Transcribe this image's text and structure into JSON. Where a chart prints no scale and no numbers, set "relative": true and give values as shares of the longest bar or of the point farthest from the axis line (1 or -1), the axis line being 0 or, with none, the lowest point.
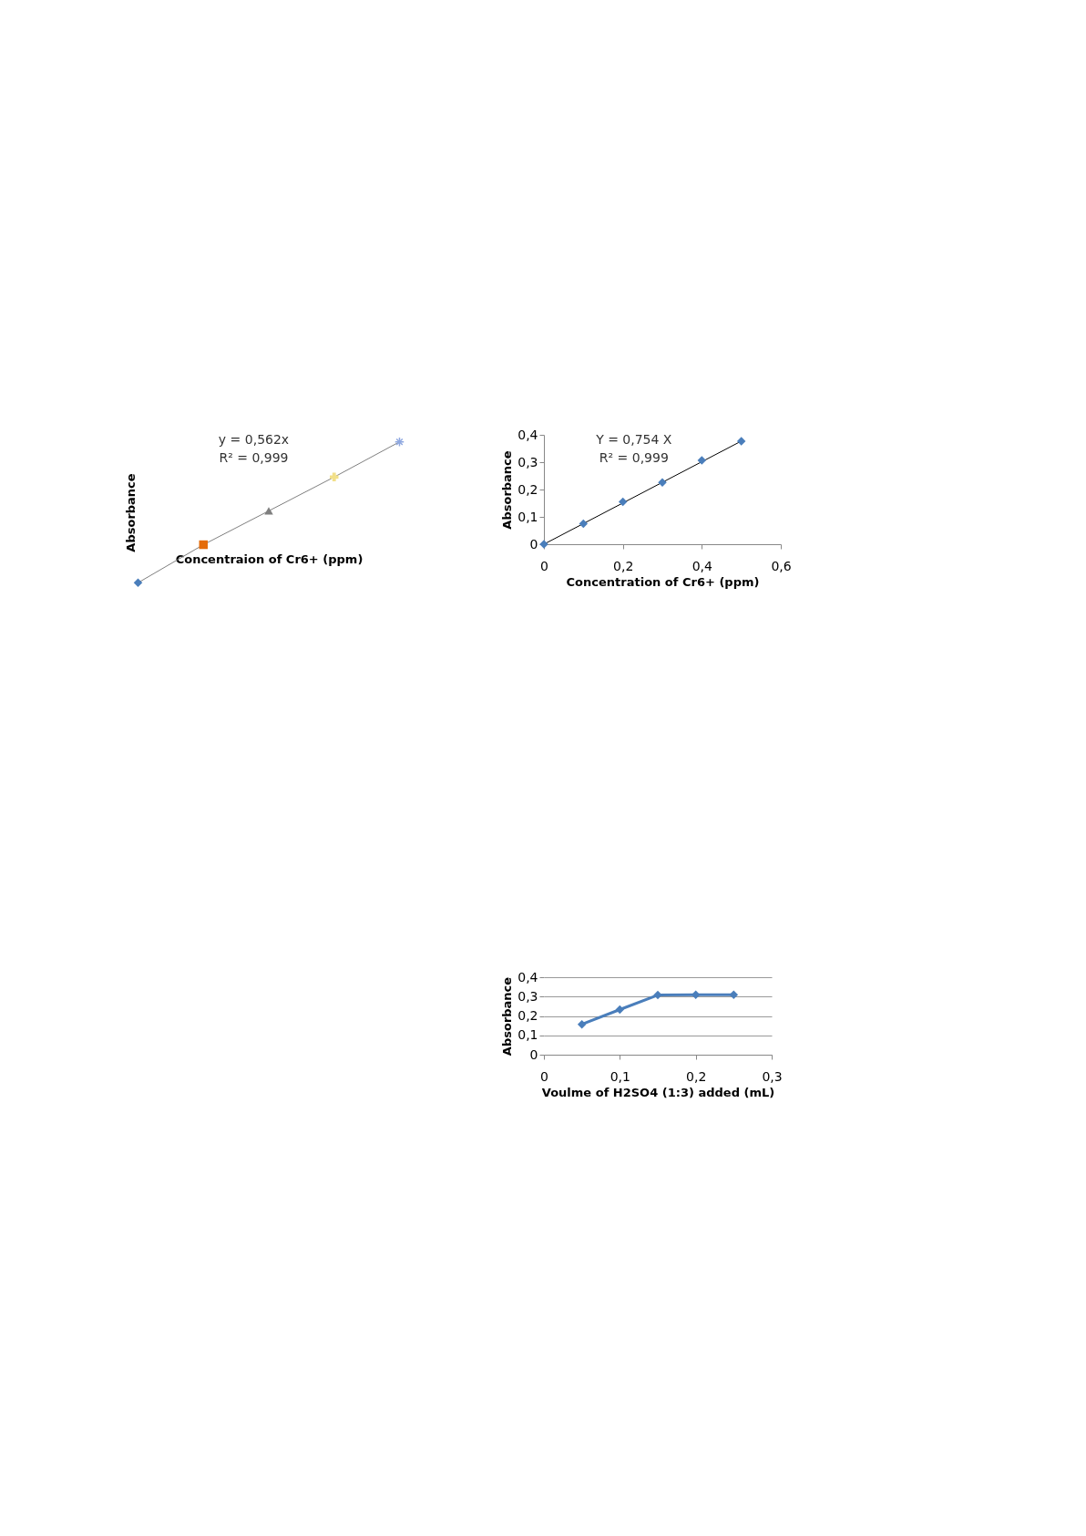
{
  "chart_data": [
    {
      "type": "scatter",
      "relative": true,
      "xlabel": "Concentraion of Cr6+ (ppm)",
      "ylabel": "Absorbance",
      "categories": [
        null,
        null,
        null,
        null,
        null
      ],
      "annotations": [
        "y = 0,562x",
        "R² = 0,999"
      ],
      "series": [
        {
          "type": "line",
          "color": "#7f7f7f",
          "marker": [
            "diamond",
            "square",
            "triangle",
            "cross",
            "star"
          ],
          "colors": [
            "#4a7ebb",
            "#e46c0a",
            "#7f7f7f",
            "#f2e08a",
            "#8fa8e0"
          ],
          "values": [
            0,
            0.27,
            0.51,
            0.75,
            1
          ]
        }
      ]
    },
    {
      "type": "scatter",
      "xlabel": "Concentration of Cr6+ (ppm)",
      "ylabel": "Absorbance",
      "marker": "diamond",
      "annotations": [
        "Y = 0,754 X",
        "R² = 0,999"
      ],
      "x": [
        0,
        0.1,
        0.2,
        0.3,
        0.4,
        0.5
      ],
      "xlim": [
        0,
        0.6
      ],
      "xticks": [
        0,
        {
          "value": 0.2,
          "label": "0,2"
        },
        {
          "value": 0.4,
          "label": "0,4"
        },
        {
          "value": 0.6,
          "label": "0,6"
        }
      ],
      "ylim": [
        0,
        0.4
      ],
      "yticks": [
        0,
        {
          "value": 0.1,
          "label": "0,1"
        },
        {
          "value": 0.2,
          "label": "0,2"
        },
        {
          "value": 0.3,
          "label": "0,3"
        },
        {
          "value": 0.4,
          "label": "0,4"
        }
      ],
      "series": [
        {
          "type": "line",
          "color": "#000000",
          "marker": "none",
          "x": [
            0,
            0.5
          ],
          "values": [
            0,
            0.377
          ]
        },
        {
          "color": "#4a7ebb",
          "values": [
            0,
            0.075,
            0.155,
            0.226,
            0.307,
            0.377
          ]
        }
      ]
    },
    {
      "type": "line",
      "xlabel": "Voulme of H2SO4 (1:3) added  (mL)",
      "ylabel": "Absorbance",
      "marker": "diamond",
      "grid": "y",
      "x": [
        0.05,
        0.1,
        0.15,
        0.2,
        0.25
      ],
      "xlim": [
        0,
        0.3
      ],
      "xticks": [
        0,
        {
          "value": 0.1,
          "label": "0,1"
        },
        {
          "value": 0.2,
          "label": "0,2"
        },
        {
          "value": 0.3,
          "label": "0,3"
        }
      ],
      "ylim": [
        0,
        0.4
      ],
      "yticks": [
        0,
        {
          "value": 0.1,
          "label": "0,1"
        },
        {
          "value": 0.2,
          "label": "0,2"
        },
        {
          "value": 0.3,
          "label": "0,3"
        },
        {
          "value": 0.4,
          "label": "0,4"
        }
      ],
      "series": [
        {
          "color": "#4a7ebb",
          "values": [
            0.157,
            0.233,
            0.308,
            0.309,
            0.309
          ]
        }
      ]
    }
  ]
}
